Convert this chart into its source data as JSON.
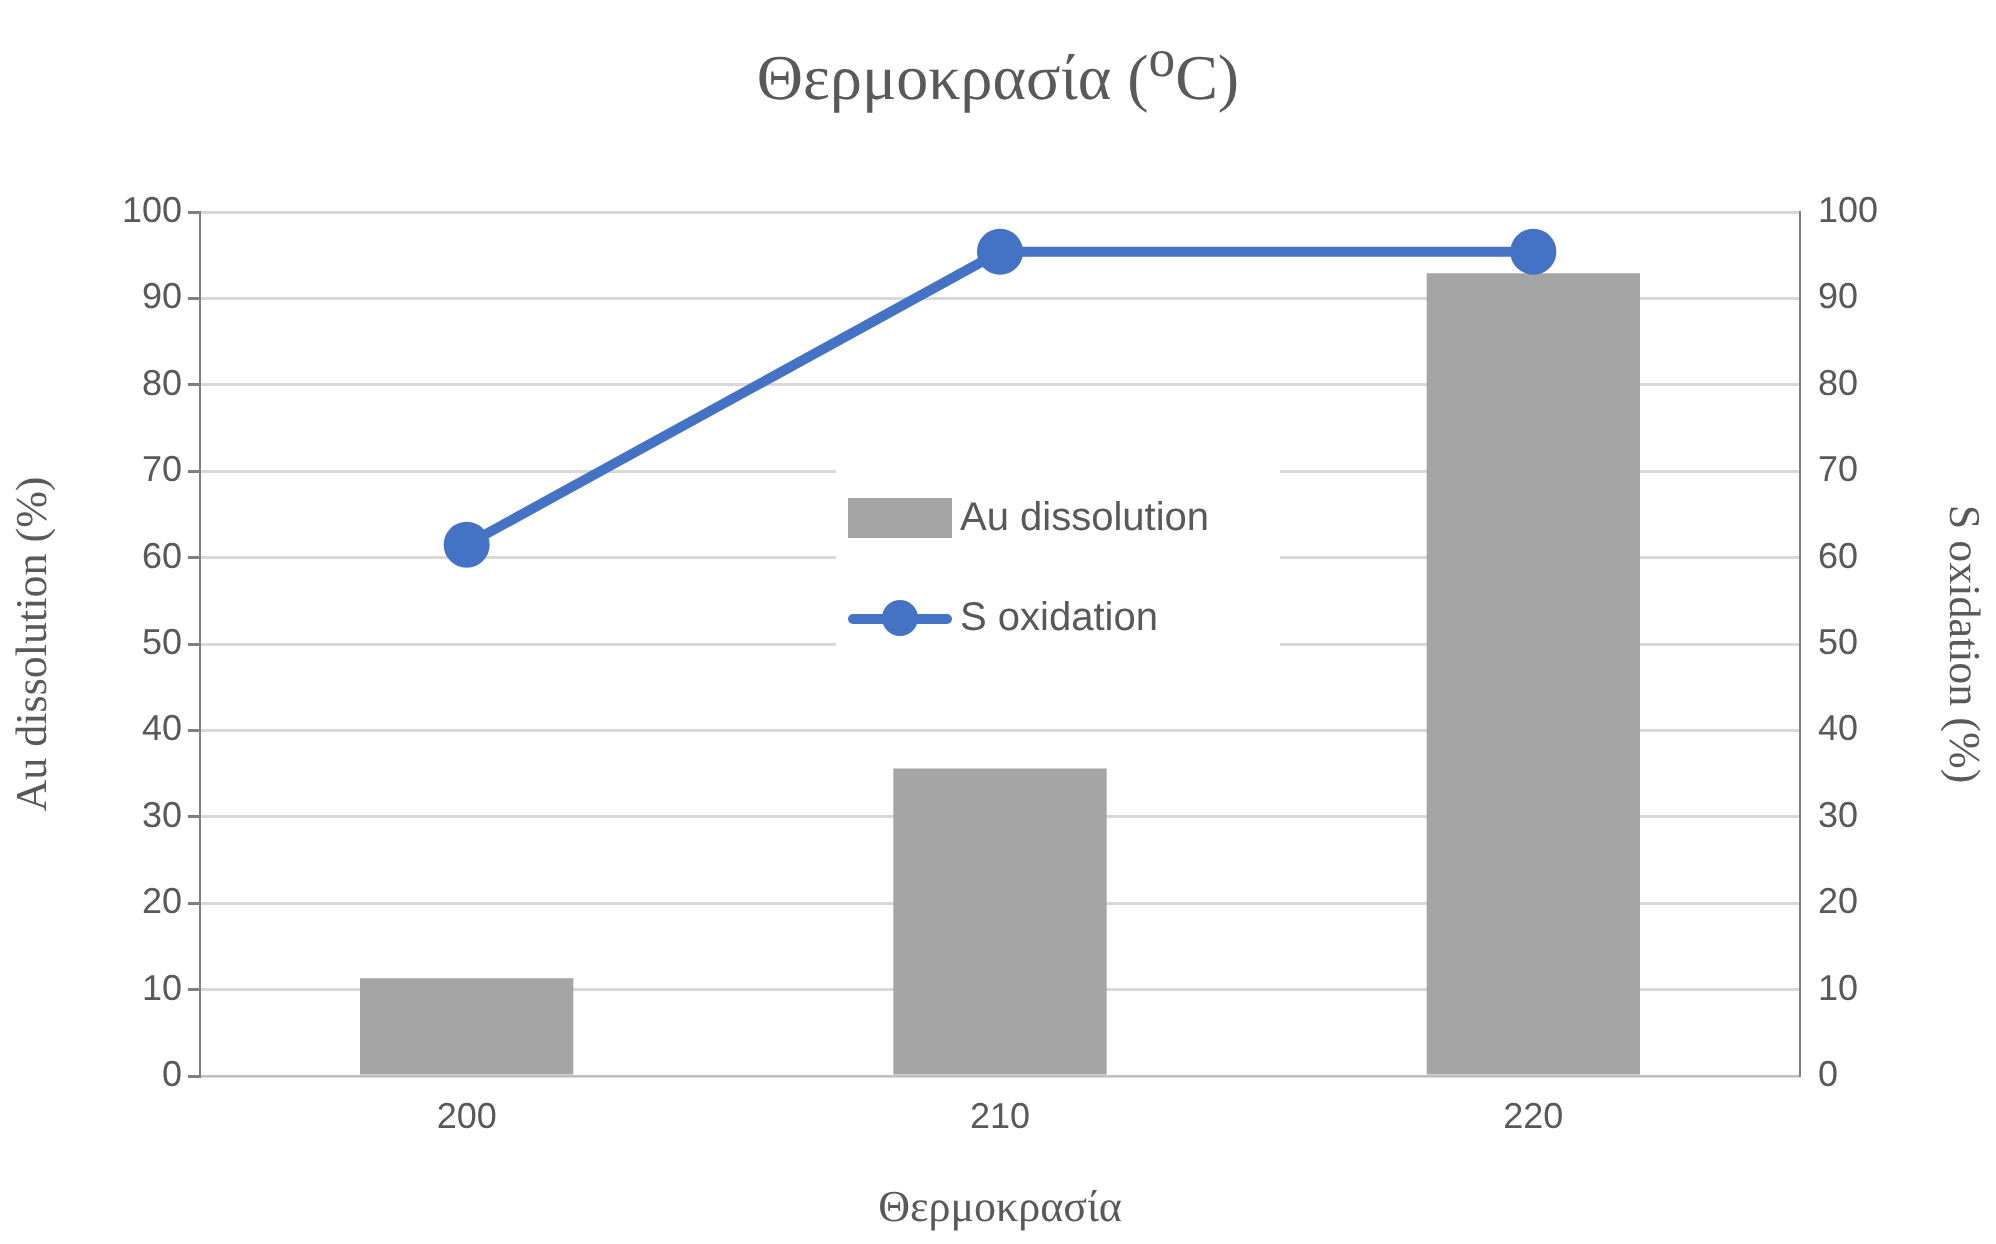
{
  "chart_data": {
    "type": "bar",
    "title": "Θερμοκρασία ($^{o}$C)",
    "xlabel": "Θερμοκρασία",
    "ylabel": "Au dissolution (%)",
    "y2label": "S oxidation (%)",
    "categories": [
      "200",
      "210",
      "220"
    ],
    "series": [
      {
        "name": "Au dissolution",
        "color": "#a5a5a5",
        "values": [
          11.3,
          35.6,
          92.9
        ]
      },
      {
        "name": "S oxidation",
        "type": "line",
        "axis": "y2",
        "color": "#4472c4",
        "values": [
          61.5,
          95.4,
          95.4
        ]
      }
    ],
    "ylim": [
      0,
      100
    ],
    "yticks": [
      0,
      10,
      20,
      30,
      40,
      50,
      60,
      70,
      80,
      90,
      100
    ],
    "y2lim": [
      0,
      100
    ],
    "y2ticks": [
      0,
      10,
      20,
      30,
      40,
      50,
      60,
      70,
      80,
      90,
      100
    ],
    "grid": "y",
    "legend": "center",
    "marker": "circle"
  }
}
